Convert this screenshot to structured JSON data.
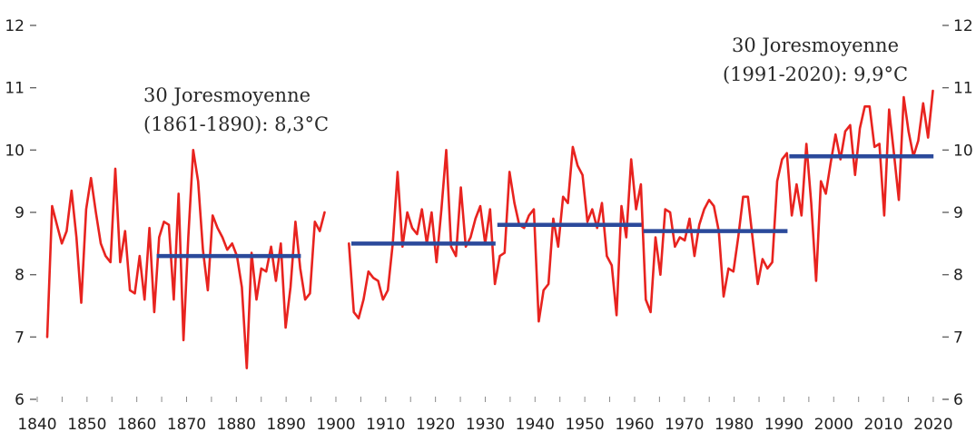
{
  "chart_data": {
    "type": "line",
    "title": "",
    "xlabel": "",
    "ylabel": "",
    "xlim": [
      1838,
      2020
    ],
    "ylim": [
      6,
      12
    ],
    "grid": false,
    "y_ticks": [
      "12",
      "11",
      "10",
      "9",
      "8",
      "7",
      "6"
    ],
    "y_axis_sides": [
      "left",
      "right"
    ],
    "x_ticks": [
      "1840",
      "1850",
      "1860",
      "1870",
      "1880",
      "1890",
      "1900",
      "1910",
      "1920",
      "1930",
      "1940",
      "1950",
      "1960",
      "1970",
      "1980",
      "1990",
      "2000",
      "2010",
      "2020"
    ],
    "series": [
      {
        "x": [
          1838,
          1839,
          1840,
          1841,
          1842,
          1843,
          1844,
          1845,
          1846,
          1847,
          1848,
          1849,
          1850,
          1851,
          1852,
          1853,
          1854,
          1855,
          1856,
          1857,
          1858,
          1859,
          1860,
          1861,
          1862,
          1863,
          1864,
          1865,
          1866,
          1867,
          1868,
          1869,
          1870,
          1871,
          1872,
          1873,
          1874,
          1875,
          1876,
          1877,
          1878,
          1879,
          1880,
          1881,
          1882,
          1883,
          1884,
          1885,
          1886,
          1887,
          1888,
          1889,
          1890,
          1891,
          1892,
          1893,
          1894,
          1895,
          1896,
          1897,
          1898,
          1899,
          1900,
          1901,
          1902,
          1903,
          1904,
          1905,
          1906,
          1907,
          1908,
          1909,
          1910,
          1911,
          1912,
          1913,
          1914,
          1915,
          1916,
          1917,
          1918,
          1919,
          1920,
          1921,
          1922,
          1923,
          1924,
          1925,
          1926,
          1927,
          1928,
          1929,
          1930,
          1931,
          1932,
          1933,
          1934,
          1935,
          1936,
          1937,
          1938,
          1939,
          1940,
          1941,
          1942,
          1943,
          1944,
          1945,
          1946,
          1947,
          1948,
          1949,
          1950,
          1951,
          1952,
          1953,
          1954,
          1955,
          1956,
          1957,
          1958,
          1959,
          1960,
          1961,
          1962,
          1963,
          1964,
          1965,
          1966,
          1967,
          1968,
          1969,
          1970,
          1971,
          1972,
          1973,
          1974,
          1975,
          1976,
          1977,
          1978,
          1979,
          1980,
          1981,
          1982,
          1983,
          1984,
          1985,
          1986,
          1987,
          1988,
          1989,
          1990,
          1991,
          1992,
          1993,
          1994,
          1995,
          1996,
          1997,
          1998,
          1999,
          2000,
          2001,
          2002,
          2003,
          2004,
          2005,
          2006,
          2007,
          2008,
          2009,
          2010,
          2011,
          2012,
          2013,
          2014,
          2015,
          2016,
          2017,
          2018,
          2019,
          2020
        ],
        "y": [
          7.0,
          9.1,
          8.8,
          8.5,
          8.7,
          9.35,
          8.6,
          7.55,
          9.05,
          9.55,
          9.0,
          8.5,
          8.3,
          8.2,
          9.7,
          8.2,
          8.7,
          7.75,
          7.7,
          8.3,
          7.6,
          8.75,
          7.4,
          8.6,
          8.85,
          8.8,
          7.6,
          9.3,
          6.95,
          8.6,
          10.0,
          9.5,
          8.4,
          7.75,
          8.95,
          8.75,
          8.6,
          8.4,
          8.5,
          8.3,
          7.8,
          6.5,
          8.35,
          7.6,
          8.1,
          8.05,
          8.45,
          7.9,
          8.5,
          7.15,
          7.8,
          8.85,
          8.1,
          7.6,
          7.7,
          8.85,
          8.7,
          9.0,
          null,
          null,
          null,
          null,
          8.5,
          7.4,
          7.3,
          7.6,
          8.05,
          7.95,
          7.9,
          7.6,
          7.75,
          8.5,
          9.65,
          8.45,
          9.0,
          8.75,
          8.65,
          9.05,
          8.5,
          9.0,
          8.2,
          9.05,
          10.0,
          8.45,
          8.3,
          9.4,
          8.45,
          8.6,
          8.9,
          9.1,
          8.5,
          9.05,
          7.85,
          8.3,
          8.35,
          9.65,
          9.15,
          8.8,
          8.75,
          8.95,
          9.05,
          7.25,
          7.75,
          7.85,
          8.9,
          8.45,
          9.25,
          9.15,
          10.05,
          9.75,
          9.6,
          8.85,
          9.05,
          8.75,
          9.15,
          8.3,
          8.15,
          7.35,
          9.1,
          8.6,
          9.85,
          9.05,
          9.45,
          7.6,
          7.4,
          8.6,
          8.0,
          9.05,
          9.0,
          8.45,
          8.6,
          8.55,
          8.9,
          8.3,
          8.8,
          9.05,
          9.2,
          9.1,
          8.7,
          7.65,
          8.1,
          8.05,
          8.6,
          9.25,
          9.25,
          8.55,
          7.85,
          8.25,
          8.1,
          8.2,
          9.5,
          9.85,
          9.95,
          8.95,
          9.45,
          8.95,
          10.1,
          9.15,
          7.9,
          9.5,
          9.3,
          9.8,
          10.25,
          9.85,
          10.3,
          10.4,
          9.6,
          10.35,
          10.7,
          10.7,
          10.05,
          10.1,
          8.95,
          10.65,
          9.95,
          9.2,
          10.85,
          10.3,
          9.9,
          10.15,
          10.75,
          10.2,
          10.95
        ]
      }
    ],
    "averages": [
      {
        "start": 1861,
        "end": 1890,
        "value": 8.3
      },
      {
        "start": 1901,
        "end": 1930,
        "value": 8.5
      },
      {
        "start": 1931,
        "end": 1960,
        "value": 8.8
      },
      {
        "start": 1961,
        "end": 1990,
        "value": 8.7
      },
      {
        "start": 1991,
        "end": 2020,
        "value": 9.9
      }
    ],
    "annotations": [
      {
        "lines": [
          "30 Joresmoyenne",
          "(1861-1890): 8,3°C"
        ]
      },
      {
        "lines": [
          "30 Joresmoyenne",
          "(1991-2020): 9,9°C"
        ]
      }
    ],
    "colors": {
      "series": "#e8231f",
      "average": "#2b4a9b",
      "text": "#1e1e1e"
    }
  }
}
